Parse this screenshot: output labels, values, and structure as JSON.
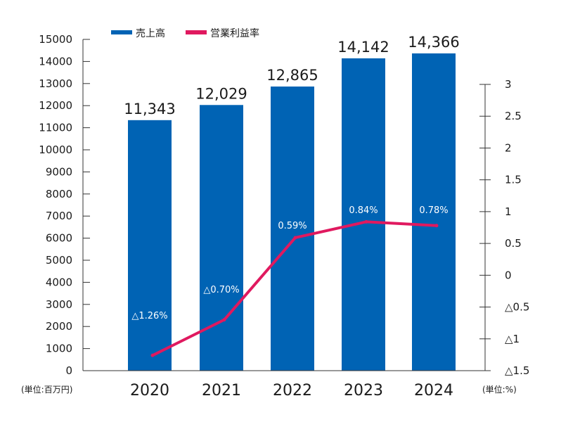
{
  "chart_data": {
    "type": "bar+line",
    "categories": [
      "2020",
      "2021",
      "2022",
      "2023",
      "2024"
    ],
    "series": [
      {
        "name": "売上高",
        "type": "bar",
        "axis": "left",
        "color": "#0063b4",
        "values": [
          11343,
          12029,
          12865,
          14142,
          14366
        ],
        "labels": [
          "11,343",
          "12,029",
          "12,865",
          "14,142",
          "14,366"
        ]
      },
      {
        "name": "営業利益率",
        "type": "line",
        "axis": "right",
        "color": "#e0195f",
        "values": [
          -1.26,
          -0.7,
          0.59,
          0.84,
          0.78
        ],
        "labels": [
          "△1.26%",
          "△0.70%",
          "0.59%",
          "0.84%",
          "0.78%"
        ]
      }
    ],
    "left_axis": {
      "unit": "(単位:百万円)",
      "ylim": [
        0,
        15000
      ],
      "ticks": [
        0,
        1000,
        2000,
        3000,
        4000,
        5000,
        6000,
        7000,
        8000,
        9000,
        10000,
        11000,
        12000,
        13000,
        14000,
        15000
      ],
      "tick_labels": [
        "0",
        "1000",
        "2000",
        "3000",
        "4000",
        "5000",
        "6000",
        "7000",
        "8000",
        "9000",
        "10000",
        "11000",
        "12000",
        "13000",
        "14000",
        "15000"
      ]
    },
    "right_axis": {
      "unit": "(単位:%)",
      "ylim": [
        -1.5,
        3
      ],
      "ticks": [
        -1.5,
        -1,
        -0.5,
        0,
        0.5,
        1,
        1.5,
        2,
        2.5,
        3
      ],
      "tick_labels": [
        "△1.5",
        "△1",
        "△0.5",
        "0",
        "0.5",
        "1",
        "1.5",
        "2",
        "2.5",
        "3"
      ]
    },
    "legend_position": "top-left",
    "grid": false
  }
}
